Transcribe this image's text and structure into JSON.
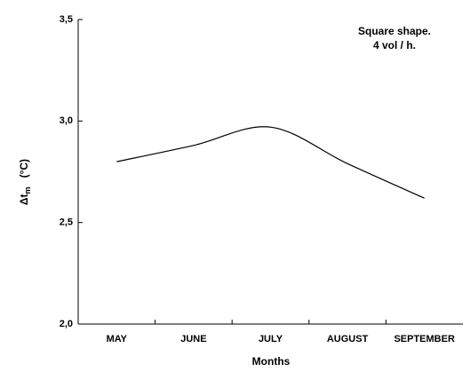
{
  "chart_data": {
    "type": "line",
    "annotation": [
      "Square shape.",
      "4 vol / h."
    ],
    "x_label": "Months",
    "y_label": "Δt",
    "y_label_sub": "m",
    "y_label_unit": "(°C)",
    "categories": [
      "MAY",
      "JUNE",
      "JULY",
      "AUGUST",
      "SEPTEMBER"
    ],
    "series": [
      {
        "color": "#000000",
        "values": [
          2.8,
          2.88,
          2.97,
          2.79,
          2.62
        ]
      }
    ],
    "ylim": [
      2.0,
      3.5
    ],
    "yticks": [
      {
        "value": 2.0,
        "label": "2,0"
      },
      {
        "value": 2.5,
        "label": "2,5"
      },
      {
        "value": 3.0,
        "label": "3,0"
      },
      {
        "value": 3.5,
        "label": "3,5"
      }
    ]
  }
}
